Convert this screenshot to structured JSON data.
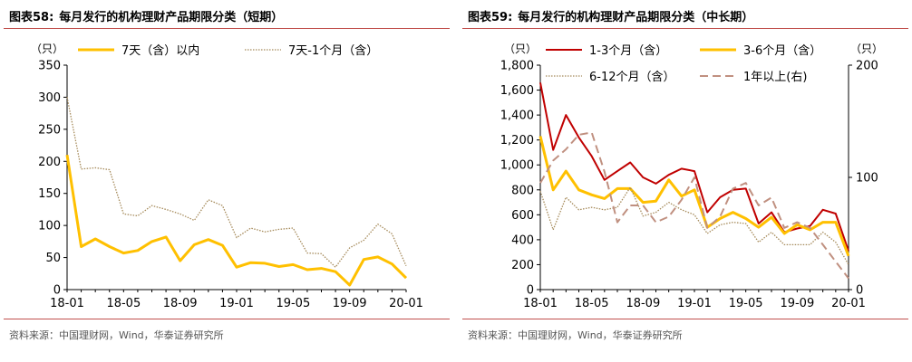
{
  "panels": [
    {
      "figure_label": "图表58:",
      "title": "每月发行的机构理财产品期限分类（短期）",
      "source": "资料来源：中国理财网，Wind，华泰证券研究所"
    },
    {
      "figure_label": "图表59:",
      "title": "每月发行的机构理财产品期限分类（中长期）",
      "source": "资料来源：中国理财网，Wind，华泰证券研究所"
    }
  ],
  "chart_data": [
    {
      "type": "line",
      "title": "每月发行的机构理财产品期限分类（短期）",
      "unit_left": "（只）",
      "x": [
        "18-01",
        "18-02",
        "18-03",
        "18-04",
        "18-05",
        "18-06",
        "18-07",
        "18-08",
        "18-09",
        "18-10",
        "18-11",
        "18-12",
        "19-01",
        "19-02",
        "19-03",
        "19-04",
        "19-05",
        "19-06",
        "19-07",
        "19-08",
        "19-09",
        "19-10",
        "19-11",
        "19-12",
        "20-01"
      ],
      "x_tick_labels": [
        "18-01",
        "18-05",
        "18-09",
        "19-01",
        "19-05",
        "19-09",
        "20-01"
      ],
      "ylim": [
        0,
        350
      ],
      "y_ticks": [
        "0",
        "50",
        "100",
        "150",
        "200",
        "250",
        "300",
        "350"
      ],
      "y_tick_values": [
        0,
        50,
        100,
        150,
        200,
        250,
        300,
        350
      ],
      "grid": false,
      "legend_placement": "top",
      "series": [
        {
          "name": "7天（含）以内",
          "color": "#ffc000",
          "style": "solid",
          "width": 3,
          "values": [
            210,
            67,
            79,
            67,
            57,
            61,
            75,
            82,
            45,
            70,
            78,
            69,
            35,
            42,
            41,
            36,
            39,
            31,
            33,
            28,
            7,
            47,
            51,
            40,
            18
          ]
        },
        {
          "name": "7天-1个月（含）",
          "color": "#a58a5a",
          "style": "dotted",
          "width": 1.3,
          "values": [
            300,
            188,
            190,
            187,
            118,
            115,
            131,
            125,
            118,
            108,
            140,
            131,
            81,
            96,
            90,
            94,
            96,
            57,
            56,
            35,
            65,
            77,
            102,
            87,
            37
          ]
        }
      ]
    },
    {
      "type": "line",
      "title": "每月发行的机构理财产品期限分类（中长期）",
      "unit_left": "（只）",
      "unit_right": "（只）",
      "x": [
        "18-01",
        "18-02",
        "18-03",
        "18-04",
        "18-05",
        "18-06",
        "18-07",
        "18-08",
        "18-09",
        "18-10",
        "18-11",
        "18-12",
        "19-01",
        "19-02",
        "19-03",
        "19-04",
        "19-05",
        "19-06",
        "19-07",
        "19-08",
        "19-09",
        "19-10",
        "19-11",
        "19-12",
        "20-01"
      ],
      "x_tick_labels": [
        "18-01",
        "18-05",
        "18-09",
        "19-01",
        "19-05",
        "19-09",
        "20-01"
      ],
      "ylim_left": [
        0,
        1800
      ],
      "y_ticks_left": [
        "0",
        "200",
        "400",
        "600",
        "800",
        "1,000",
        "1,200",
        "1,400",
        "1,600",
        "1,800"
      ],
      "y_tick_values_left": [
        0,
        200,
        400,
        600,
        800,
        1000,
        1200,
        1400,
        1600,
        1800
      ],
      "ylim_right": [
        0,
        200
      ],
      "y_ticks_right": [
        "0",
        "100",
        "200"
      ],
      "y_tick_values_right": [
        0,
        100,
        200
      ],
      "grid": false,
      "legend_placement": "top",
      "series": [
        {
          "name": "1-3个月（含）",
          "color": "#c00000",
          "style": "solid",
          "width": 2,
          "axis": "left",
          "values": [
            1660,
            1120,
            1400,
            1220,
            1070,
            880,
            950,
            1020,
            900,
            850,
            920,
            970,
            950,
            620,
            740,
            800,
            810,
            530,
            620,
            460,
            490,
            510,
            640,
            610,
            310
          ]
        },
        {
          "name": "3-6个月（含）",
          "color": "#ffc000",
          "style": "solid",
          "width": 3,
          "axis": "left",
          "values": [
            1230,
            800,
            950,
            800,
            760,
            730,
            810,
            810,
            700,
            710,
            880,
            750,
            800,
            500,
            570,
            620,
            570,
            500,
            580,
            450,
            520,
            480,
            540,
            540,
            270
          ]
        },
        {
          "name": "6-12个月（含）",
          "color": "#a58a5a",
          "style": "dotted",
          "width": 1.3,
          "axis": "left",
          "values": [
            790,
            480,
            740,
            640,
            660,
            640,
            660,
            820,
            590,
            620,
            700,
            640,
            600,
            450,
            520,
            540,
            530,
            380,
            460,
            360,
            360,
            360,
            460,
            380,
            200
          ]
        },
        {
          "name": "1年以上(右)",
          "color": "#c09080",
          "style": "dashed",
          "width": 2,
          "axis": "right",
          "values": [
            95,
            115,
            125,
            138,
            140,
            105,
            60,
            75,
            75,
            60,
            65,
            80,
            100,
            55,
            65,
            90,
            95,
            75,
            82,
            55,
            60,
            55,
            40,
            25,
            10
          ]
        }
      ]
    }
  ]
}
